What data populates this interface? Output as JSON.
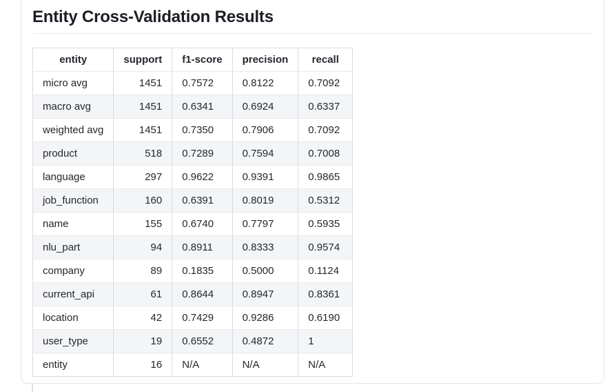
{
  "card": {
    "title": "Entity Cross-Validation Results"
  },
  "table": {
    "columns": [
      "entity",
      "support",
      "f1-score",
      "precision",
      "recall"
    ],
    "rows": [
      [
        "micro avg",
        "1451",
        "0.7572",
        "0.8122",
        "0.7092"
      ],
      [
        "macro avg",
        "1451",
        "0.6341",
        "0.6924",
        "0.6337"
      ],
      [
        "weighted avg",
        "1451",
        "0.7350",
        "0.7906",
        "0.7092"
      ],
      [
        "product",
        "518",
        "0.7289",
        "0.7594",
        "0.7008"
      ],
      [
        "language",
        "297",
        "0.9622",
        "0.9391",
        "0.9865"
      ],
      [
        "job_function",
        "160",
        "0.6391",
        "0.8019",
        "0.5312"
      ],
      [
        "name",
        "155",
        "0.6740",
        "0.7797",
        "0.5935"
      ],
      [
        "nlu_part",
        "94",
        "0.8911",
        "0.8333",
        "0.9574"
      ],
      [
        "company",
        "89",
        "0.1835",
        "0.5000",
        "0.1124"
      ],
      [
        "current_api",
        "61",
        "0.8644",
        "0.8947",
        "0.8361"
      ],
      [
        "location",
        "42",
        "0.7429",
        "0.9286",
        "0.6190"
      ],
      [
        "user_type",
        "19",
        "0.6552",
        "0.4872",
        "1"
      ],
      [
        "entity",
        "16",
        "N/A",
        "N/A",
        "N/A"
      ]
    ]
  },
  "colors": {
    "card_border": "#e3e4e8",
    "table_border_vertical": "#d9dade",
    "table_border_horizontal": "#e8e9ec",
    "row_stripe": "#f4f5f7",
    "title_text": "#1b1e23",
    "body_text": "#24272c"
  }
}
